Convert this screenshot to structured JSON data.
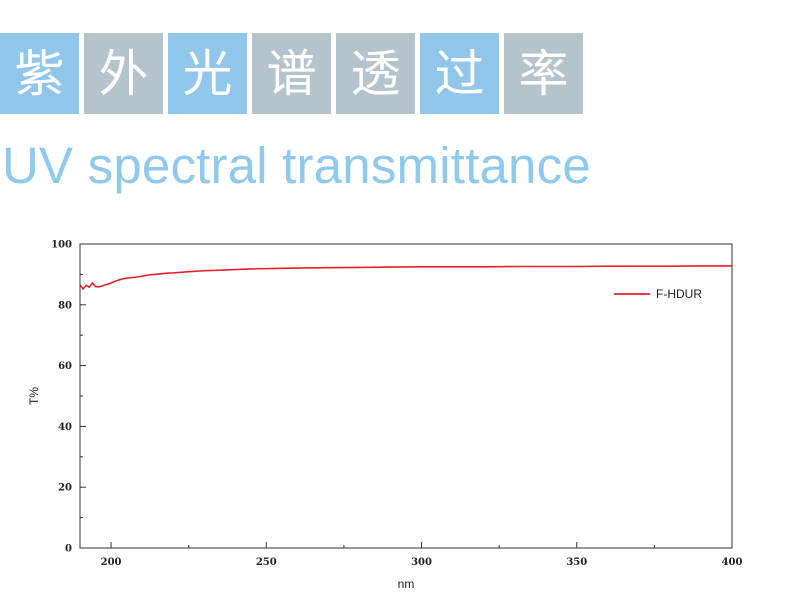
{
  "header": {
    "title_tiles": [
      "紫",
      "外",
      "光",
      "谱",
      "透",
      "过",
      "率"
    ],
    "subtitle": "UV spectral transmittance",
    "tile_colors": [
      "#8fc6ea",
      "#b5c3cd"
    ],
    "subtitle_color": "#8fcaee"
  },
  "chart_data": {
    "type": "line",
    "title": "",
    "xlabel": "nm",
    "ylabel": "T%",
    "xlim": [
      190,
      400
    ],
    "ylim": [
      0,
      100
    ],
    "x_ticks": [
      200,
      250,
      300,
      350,
      400
    ],
    "y_ticks": [
      0,
      20,
      40,
      60,
      80,
      100
    ],
    "grid": false,
    "legend_position": "top-right",
    "series": [
      {
        "name": "F-HDUR",
        "color": "#e8202a",
        "x": [
          190,
          191,
          192,
          193,
          194,
          195,
          196,
          197,
          198,
          199,
          200,
          202,
          204,
          206,
          208,
          210,
          212,
          214,
          216,
          218,
          220,
          225,
          230,
          235,
          240,
          245,
          250,
          255,
          260,
          270,
          280,
          290,
          300,
          310,
          320,
          330,
          340,
          350,
          360,
          370,
          380,
          390,
          400
        ],
        "y": [
          86.5,
          85.2,
          86.4,
          85.8,
          87.2,
          86.0,
          85.9,
          86.1,
          86.5,
          86.8,
          87.2,
          88.0,
          88.6,
          88.9,
          89.1,
          89.4,
          89.8,
          90.0,
          90.2,
          90.4,
          90.5,
          90.9,
          91.2,
          91.4,
          91.6,
          91.8,
          91.9,
          92.0,
          92.1,
          92.2,
          92.3,
          92.4,
          92.5,
          92.5,
          92.5,
          92.6,
          92.6,
          92.6,
          92.7,
          92.7,
          92.7,
          92.8,
          92.8
        ]
      }
    ]
  }
}
